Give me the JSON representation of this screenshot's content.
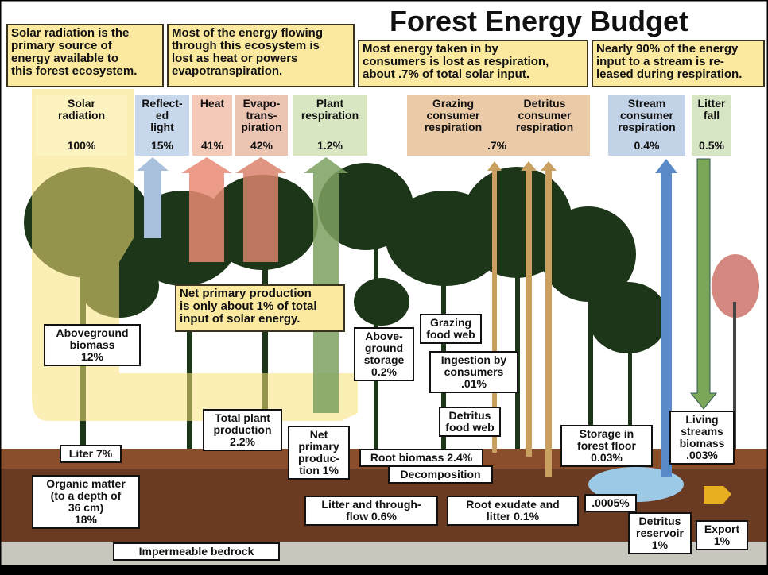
{
  "header": {
    "title": "Forest Energy Budget"
  },
  "callouts": [
    {
      "text": "Solar radiation is the\nprimary source of\nenergy available to\nthis forest ecosystem."
    },
    {
      "text": "Most of the energy flowing\nthrough this ecosystem is\nlost as heat or powers\nevapotranspiration."
    },
    {
      "text": "Most energy taken in by\nconsumers is lost as respiration,\nabout .7% of total solar input."
    },
    {
      "text": "Nearly 90% of the energy\ninput to a stream is re-\nleased during respiration."
    },
    {
      "text": "Net primary production\nis only about 1% of total\ninput of solar energy."
    }
  ],
  "fluxes": [
    {
      "label": "Solar\nradiation",
      "value": "100%"
    },
    {
      "label": "Reflect-\ned\nlight",
      "value": "15%"
    },
    {
      "label": "Heat",
      "value": "41%"
    },
    {
      "label": "Evapo-\ntrans-\npiration",
      "value": "42%"
    },
    {
      "label": "Plant\nrespiration",
      "value": "1.2%"
    },
    {
      "label": "Stream\nconsumer\nrespiration",
      "value": "0.4%"
    },
    {
      "label": "Litter\nfall",
      "value": "0.5%"
    }
  ],
  "consumer_respiration": {
    "grazing": "Grazing\nconsumer\nrespiration",
    "detritus": "Detritus\nconsumer\nrespiration",
    "value": ".7%"
  },
  "labels": [
    {
      "text": "Aboveground\nbiomass\n12%"
    },
    {
      "text": "Liter 7%"
    },
    {
      "text": "Organic matter\n(to a depth of\n36 cm)\n18%"
    },
    {
      "text": "Impermeable bedrock"
    },
    {
      "text": "Total plant\nproduction\n2.2%"
    },
    {
      "text": "Net\nprimary\nproduc-\ntion 1%"
    },
    {
      "text": "Above-\nground\nstorage\n0.2%"
    },
    {
      "text": "Grazing\nfood web"
    },
    {
      "text": "Ingestion by\nconsumers\n.01%"
    },
    {
      "text": "Detritus\nfood web"
    },
    {
      "text": "Root biomass 2.4%"
    },
    {
      "text": "Decomposition"
    },
    {
      "text": "Litter and through-\nflow 0.6%"
    },
    {
      "text": "Root exudate and\nlitter 0.1%"
    },
    {
      "text": "Storage in\nforest floor\n0.03%"
    },
    {
      "text": ".0005%"
    },
    {
      "text": "Detritus\nreservoir\n1%"
    },
    {
      "text": "Export\n1%"
    },
    {
      "text": "Living\nstreams\nbiomass\n.003%"
    }
  ]
}
